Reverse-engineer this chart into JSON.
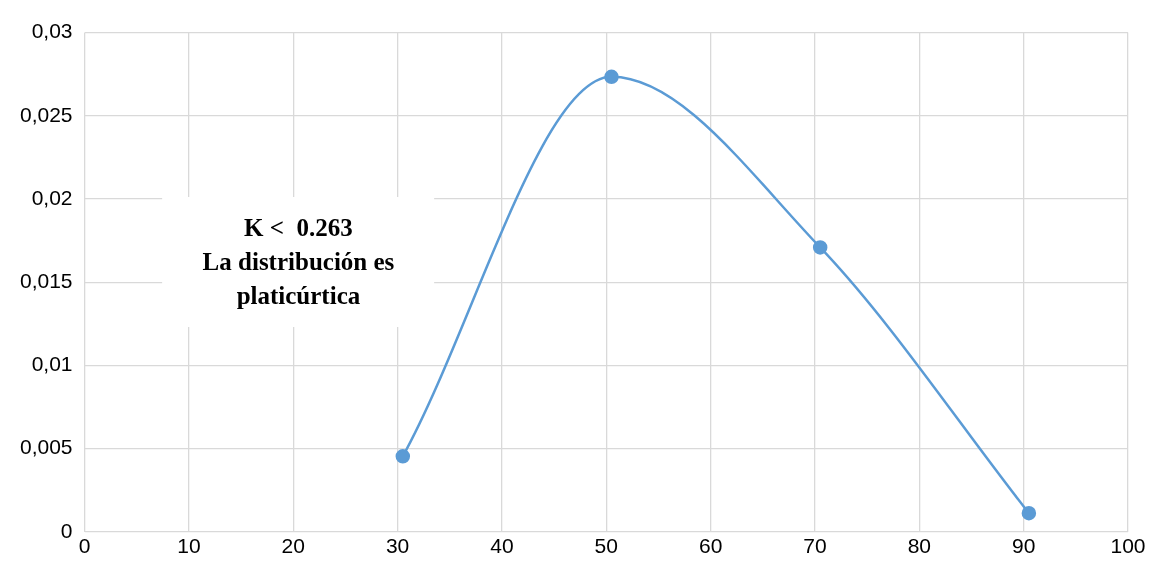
{
  "chart_data": {
    "type": "line",
    "x": [
      30.5,
      50.5,
      70.5,
      90.5
    ],
    "series": [
      {
        "color": "#5b9bd5",
        "values": [
          0.00454,
          0.02734,
          0.01709,
          0.00112
        ]
      }
    ],
    "xlim": [
      0,
      100
    ],
    "xticks": [
      0,
      10,
      20,
      30,
      40,
      50,
      60,
      70,
      80,
      90,
      100
    ],
    "ylim": [
      0,
      0.03
    ],
    "yticks": [
      {
        "value": 0,
        "label": "0"
      },
      {
        "value": 0.005,
        "label": "0,005"
      },
      {
        "value": 0.01,
        "label": "0,01"
      },
      {
        "value": 0.015,
        "label": "0,015"
      },
      {
        "value": 0.02,
        "label": "0,02"
      },
      {
        "value": 0.025,
        "label": "0,025"
      },
      {
        "value": 0.03,
        "label": "0,03"
      }
    ],
    "grid": true,
    "marker": "circle",
    "legend": false,
    "annotations": [
      "K <  0.263\nLa distribución es\nplaticúrtica"
    ]
  }
}
